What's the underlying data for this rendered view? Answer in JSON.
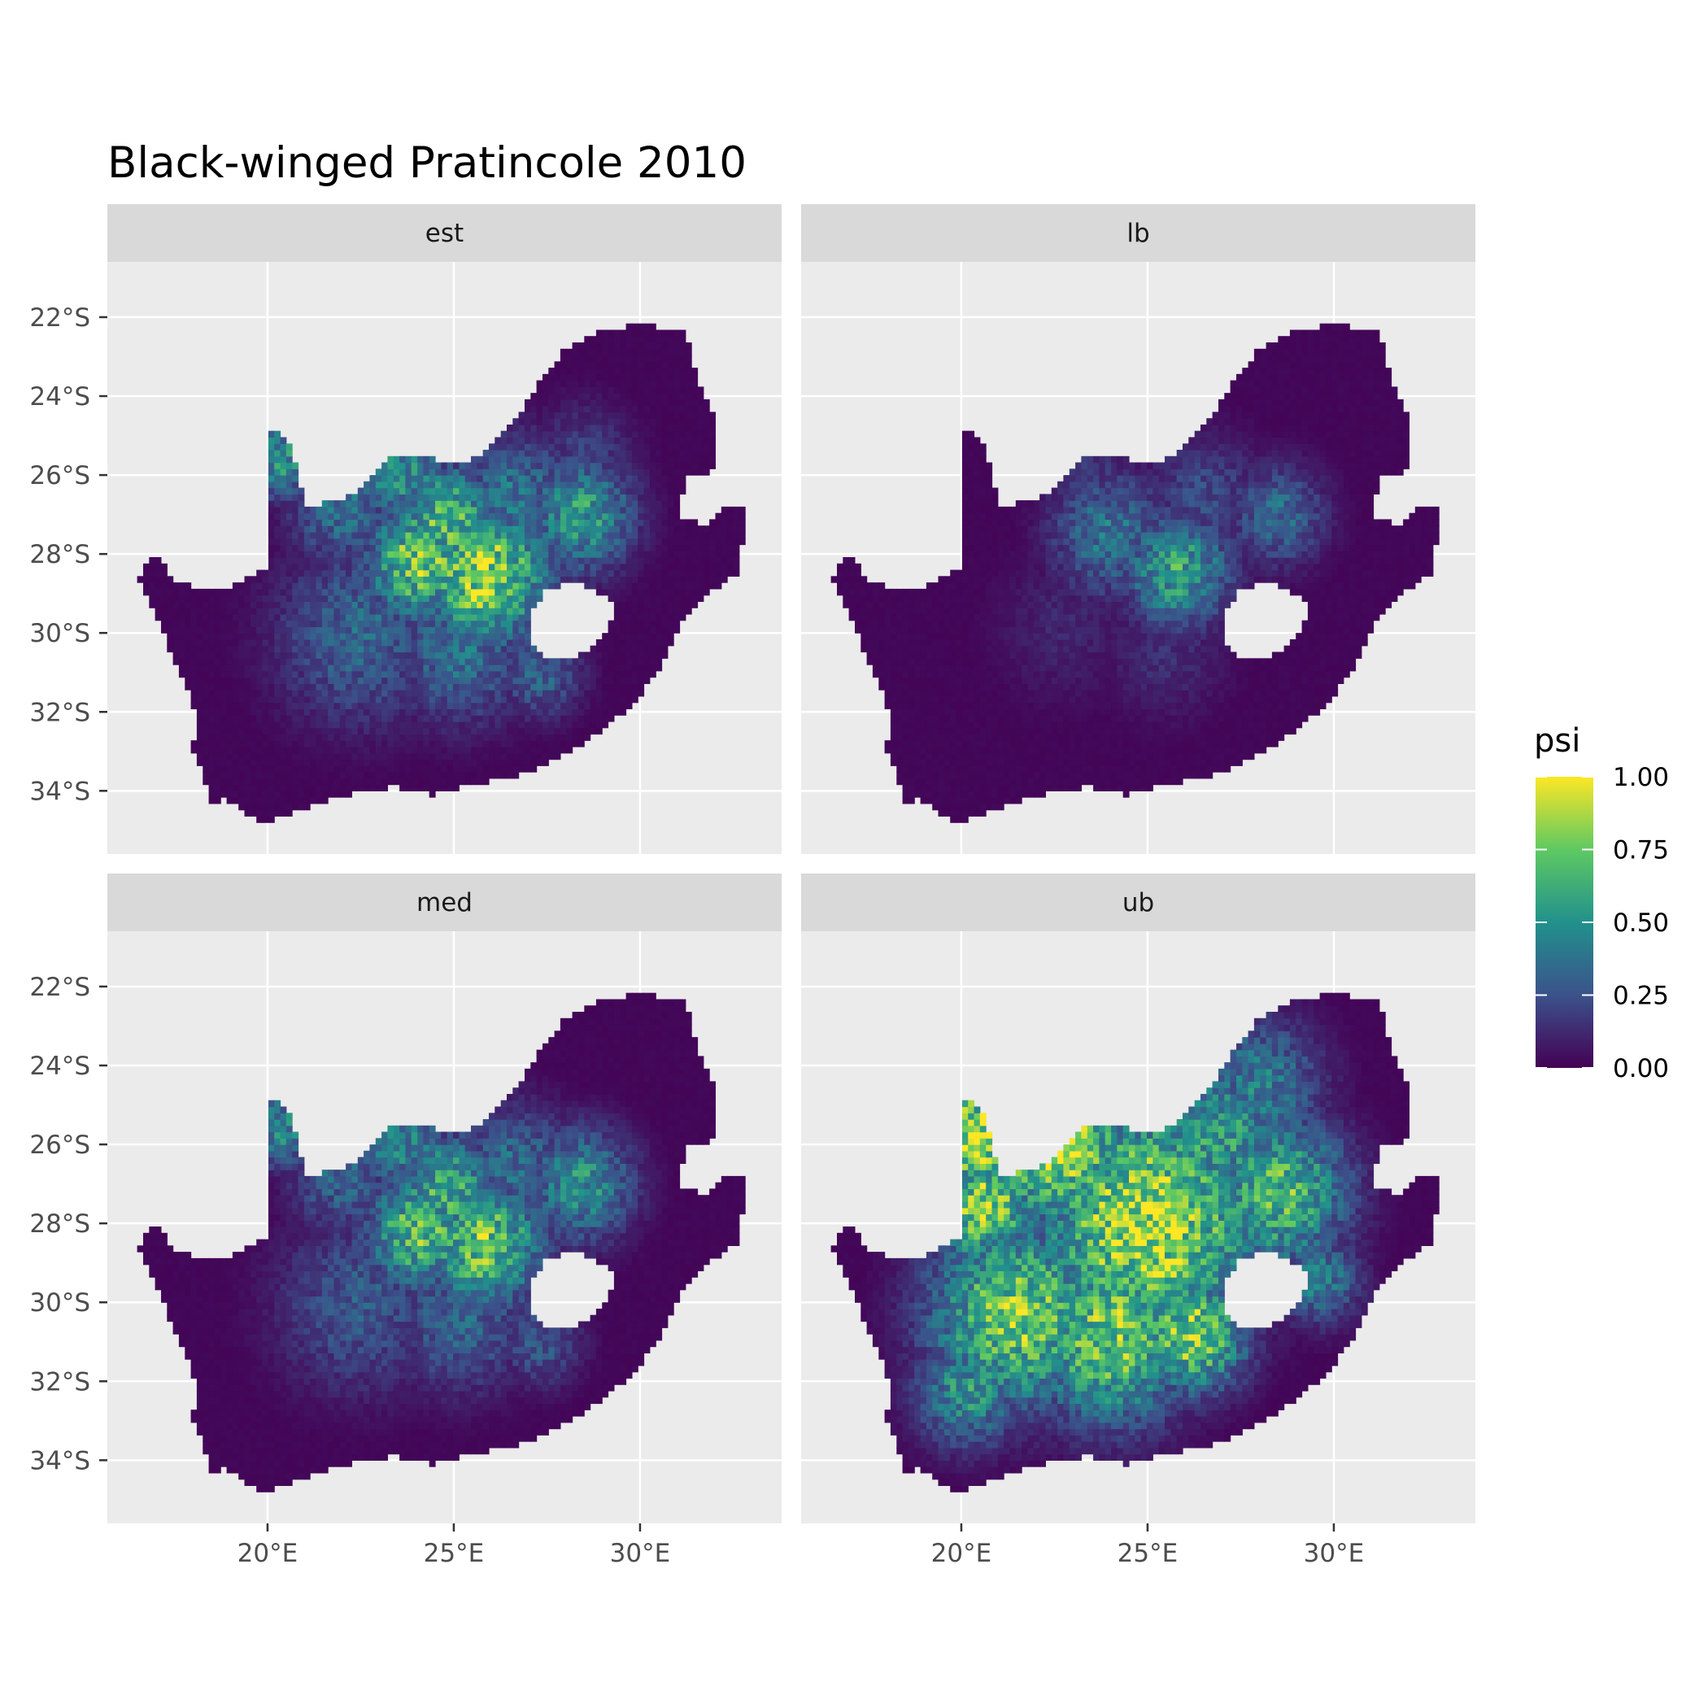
{
  "title": "Black-winged Pratincole 2010",
  "colors": {
    "panel_background": "#ebebeb",
    "strip_background": "#d9d9d9",
    "grid": "#ffffff",
    "land_low": "#440154",
    "viridis": [
      "#440154",
      "#3b528b",
      "#21918c",
      "#5ec962",
      "#fde725"
    ]
  },
  "chart_data": {
    "type": "heatmap",
    "variable": "psi",
    "xlim": [
      15.7,
      33.8
    ],
    "ylim": [
      -35.6,
      -20.6
    ],
    "x_ticks": [
      {
        "value": 20,
        "label": "20°E"
      },
      {
        "value": 25,
        "label": "25°E"
      },
      {
        "value": 30,
        "label": "30°E"
      }
    ],
    "y_ticks": [
      {
        "value": -22,
        "label": "22°S"
      },
      {
        "value": -24,
        "label": "24°S"
      },
      {
        "value": -26,
        "label": "26°S"
      },
      {
        "value": -28,
        "label": "28°S"
      },
      {
        "value": -30,
        "label": "30°S"
      },
      {
        "value": -32,
        "label": "32°S"
      },
      {
        "value": -34,
        "label": "34°S"
      }
    ],
    "legend": {
      "title": "psi",
      "min": 0,
      "max": 1,
      "ticks": [
        {
          "value": 1.0,
          "label": "1.00"
        },
        {
          "value": 0.75,
          "label": "0.75"
        },
        {
          "value": 0.5,
          "label": "0.50"
        },
        {
          "value": 0.25,
          "label": "0.25"
        },
        {
          "value": 0.0,
          "label": "0.00"
        }
      ],
      "position": "right"
    },
    "country_outline": [
      [
        16.5,
        -28.6
      ],
      [
        17.0,
        -28.0
      ],
      [
        17.5,
        -28.7
      ],
      [
        18.5,
        -28.9
      ],
      [
        19.0,
        -28.8
      ],
      [
        20.0,
        -28.3
      ],
      [
        20.0,
        -24.8
      ],
      [
        20.5,
        -25.0
      ],
      [
        20.8,
        -25.9
      ],
      [
        21.0,
        -26.8
      ],
      [
        22.0,
        -26.6
      ],
      [
        22.6,
        -26.3
      ],
      [
        23.2,
        -25.6
      ],
      [
        24.0,
        -25.5
      ],
      [
        25.0,
        -25.7
      ],
      [
        25.8,
        -25.5
      ],
      [
        26.5,
        -24.8
      ],
      [
        27.2,
        -23.8
      ],
      [
        28.0,
        -22.8
      ],
      [
        29.0,
        -22.3
      ],
      [
        30.0,
        -22.2
      ],
      [
        31.2,
        -22.3
      ],
      [
        31.5,
        -23.5
      ],
      [
        32.0,
        -24.5
      ],
      [
        32.0,
        -25.9
      ],
      [
        31.3,
        -26.0
      ],
      [
        31.0,
        -27.0
      ],
      [
        31.8,
        -27.3
      ],
      [
        32.3,
        -26.8
      ],
      [
        32.9,
        -26.9
      ],
      [
        32.6,
        -28.5
      ],
      [
        31.8,
        -29.0
      ],
      [
        31.2,
        -29.6
      ],
      [
        30.6,
        -30.8
      ],
      [
        30.0,
        -31.6
      ],
      [
        29.2,
        -32.3
      ],
      [
        28.5,
        -32.8
      ],
      [
        27.5,
        -33.3
      ],
      [
        26.5,
        -33.7
      ],
      [
        25.5,
        -33.8
      ],
      [
        24.5,
        -34.1
      ],
      [
        23.5,
        -33.9
      ],
      [
        22.5,
        -34.0
      ],
      [
        21.5,
        -34.3
      ],
      [
        20.0,
        -34.8
      ],
      [
        19.4,
        -34.6
      ],
      [
        18.9,
        -34.2
      ],
      [
        18.4,
        -34.3
      ],
      [
        18.3,
        -33.6
      ],
      [
        17.9,
        -32.9
      ],
      [
        18.2,
        -32.6
      ],
      [
        18.0,
        -31.8
      ],
      [
        17.5,
        -30.7
      ],
      [
        17.1,
        -29.8
      ],
      [
        16.5,
        -28.6
      ]
    ],
    "lesotho_outline": [
      [
        27.0,
        -29.6
      ],
      [
        27.5,
        -28.9
      ],
      [
        28.2,
        -28.7
      ],
      [
        28.8,
        -28.9
      ],
      [
        29.4,
        -29.3
      ],
      [
        29.1,
        -29.9
      ],
      [
        28.6,
        -30.4
      ],
      [
        28.0,
        -30.7
      ],
      [
        27.5,
        -30.6
      ],
      [
        27.0,
        -30.2
      ],
      [
        27.0,
        -29.6
      ]
    ],
    "panels": [
      {
        "id": "est",
        "label": "est",
        "hotspots": [
          {
            "lon": 25.8,
            "lat": -28.5,
            "radius": 1.2,
            "psi": 0.92
          },
          {
            "lon": 24.1,
            "lat": -28.2,
            "radius": 1.0,
            "psi": 0.85
          },
          {
            "lon": 24.8,
            "lat": -27.2,
            "radius": 1.0,
            "psi": 0.75
          },
          {
            "lon": 23.6,
            "lat": -25.9,
            "radius": 0.9,
            "psi": 0.55
          },
          {
            "lon": 20.4,
            "lat": -25.6,
            "radius": 0.7,
            "psi": 0.55
          },
          {
            "lon": 22.0,
            "lat": -26.8,
            "radius": 1.0,
            "psi": 0.4
          },
          {
            "lon": 28.4,
            "lat": -27.0,
            "radius": 1.0,
            "psi": 0.6
          },
          {
            "lon": 26.6,
            "lat": -26.5,
            "radius": 1.1,
            "psi": 0.42
          },
          {
            "lon": 22.5,
            "lat": -30.0,
            "radius": 1.6,
            "psi": 0.35
          },
          {
            "lon": 25.2,
            "lat": -30.4,
            "radius": 1.3,
            "psi": 0.4
          },
          {
            "lon": 27.3,
            "lat": -31.0,
            "radius": 0.8,
            "psi": 0.35
          },
          {
            "lon": 28.5,
            "lat": -25.5,
            "radius": 1.0,
            "psi": 0.2
          }
        ]
      },
      {
        "id": "lb",
        "label": "lb",
        "hotspots": [
          {
            "lon": 25.8,
            "lat": -28.4,
            "radius": 1.0,
            "psi": 0.62
          },
          {
            "lon": 24.0,
            "lat": -27.5,
            "radius": 1.1,
            "psi": 0.42
          },
          {
            "lon": 28.5,
            "lat": -27.0,
            "radius": 0.9,
            "psi": 0.38
          },
          {
            "lon": 26.5,
            "lat": -26.5,
            "radius": 1.1,
            "psi": 0.25
          },
          {
            "lon": 23.5,
            "lat": -26.0,
            "radius": 0.8,
            "psi": 0.2
          },
          {
            "lon": 22.8,
            "lat": -29.8,
            "radius": 1.4,
            "psi": 0.12
          },
          {
            "lon": 25.5,
            "lat": -30.5,
            "radius": 1.2,
            "psi": 0.15
          }
        ]
      },
      {
        "id": "med",
        "label": "med",
        "hotspots": [
          {
            "lon": 25.8,
            "lat": -28.5,
            "radius": 1.1,
            "psi": 0.82
          },
          {
            "lon": 24.1,
            "lat": -28.2,
            "radius": 1.0,
            "psi": 0.78
          },
          {
            "lon": 24.8,
            "lat": -27.2,
            "radius": 1.0,
            "psi": 0.68
          },
          {
            "lon": 23.6,
            "lat": -25.9,
            "radius": 0.9,
            "psi": 0.5
          },
          {
            "lon": 20.4,
            "lat": -25.6,
            "radius": 0.7,
            "psi": 0.5
          },
          {
            "lon": 22.0,
            "lat": -26.8,
            "radius": 1.0,
            "psi": 0.35
          },
          {
            "lon": 28.4,
            "lat": -27.0,
            "radius": 1.0,
            "psi": 0.55
          },
          {
            "lon": 26.6,
            "lat": -26.5,
            "radius": 1.1,
            "psi": 0.38
          },
          {
            "lon": 22.5,
            "lat": -30.0,
            "radius": 1.6,
            "psi": 0.3
          },
          {
            "lon": 25.2,
            "lat": -30.4,
            "radius": 1.3,
            "psi": 0.35
          },
          {
            "lon": 27.3,
            "lat": -31.0,
            "radius": 0.8,
            "psi": 0.3
          }
        ]
      },
      {
        "id": "ub",
        "label": "ub",
        "hotspots": [
          {
            "lon": 25.0,
            "lat": -28.0,
            "radius": 2.0,
            "psi": 1.0
          },
          {
            "lon": 22.5,
            "lat": -25.8,
            "radius": 1.5,
            "psi": 0.98
          },
          {
            "lon": 20.5,
            "lat": -25.8,
            "radius": 1.0,
            "psi": 1.0
          },
          {
            "lon": 20.6,
            "lat": -27.5,
            "radius": 1.1,
            "psi": 0.85
          },
          {
            "lon": 21.5,
            "lat": -30.3,
            "radius": 1.6,
            "psi": 0.85
          },
          {
            "lon": 24.0,
            "lat": -30.8,
            "radius": 1.5,
            "psi": 0.85
          },
          {
            "lon": 26.2,
            "lat": -30.8,
            "radius": 1.0,
            "psi": 0.9
          },
          {
            "lon": 28.5,
            "lat": -27.2,
            "radius": 1.3,
            "psi": 0.75
          },
          {
            "lon": 26.8,
            "lat": -25.8,
            "radius": 1.3,
            "psi": 0.62
          },
          {
            "lon": 28.0,
            "lat": -24.5,
            "radius": 1.2,
            "psi": 0.45
          },
          {
            "lon": 20.2,
            "lat": -32.2,
            "radius": 1.0,
            "psi": 0.55
          },
          {
            "lon": 29.6,
            "lat": -29.4,
            "radius": 0.8,
            "psi": 0.45
          }
        ]
      }
    ]
  }
}
